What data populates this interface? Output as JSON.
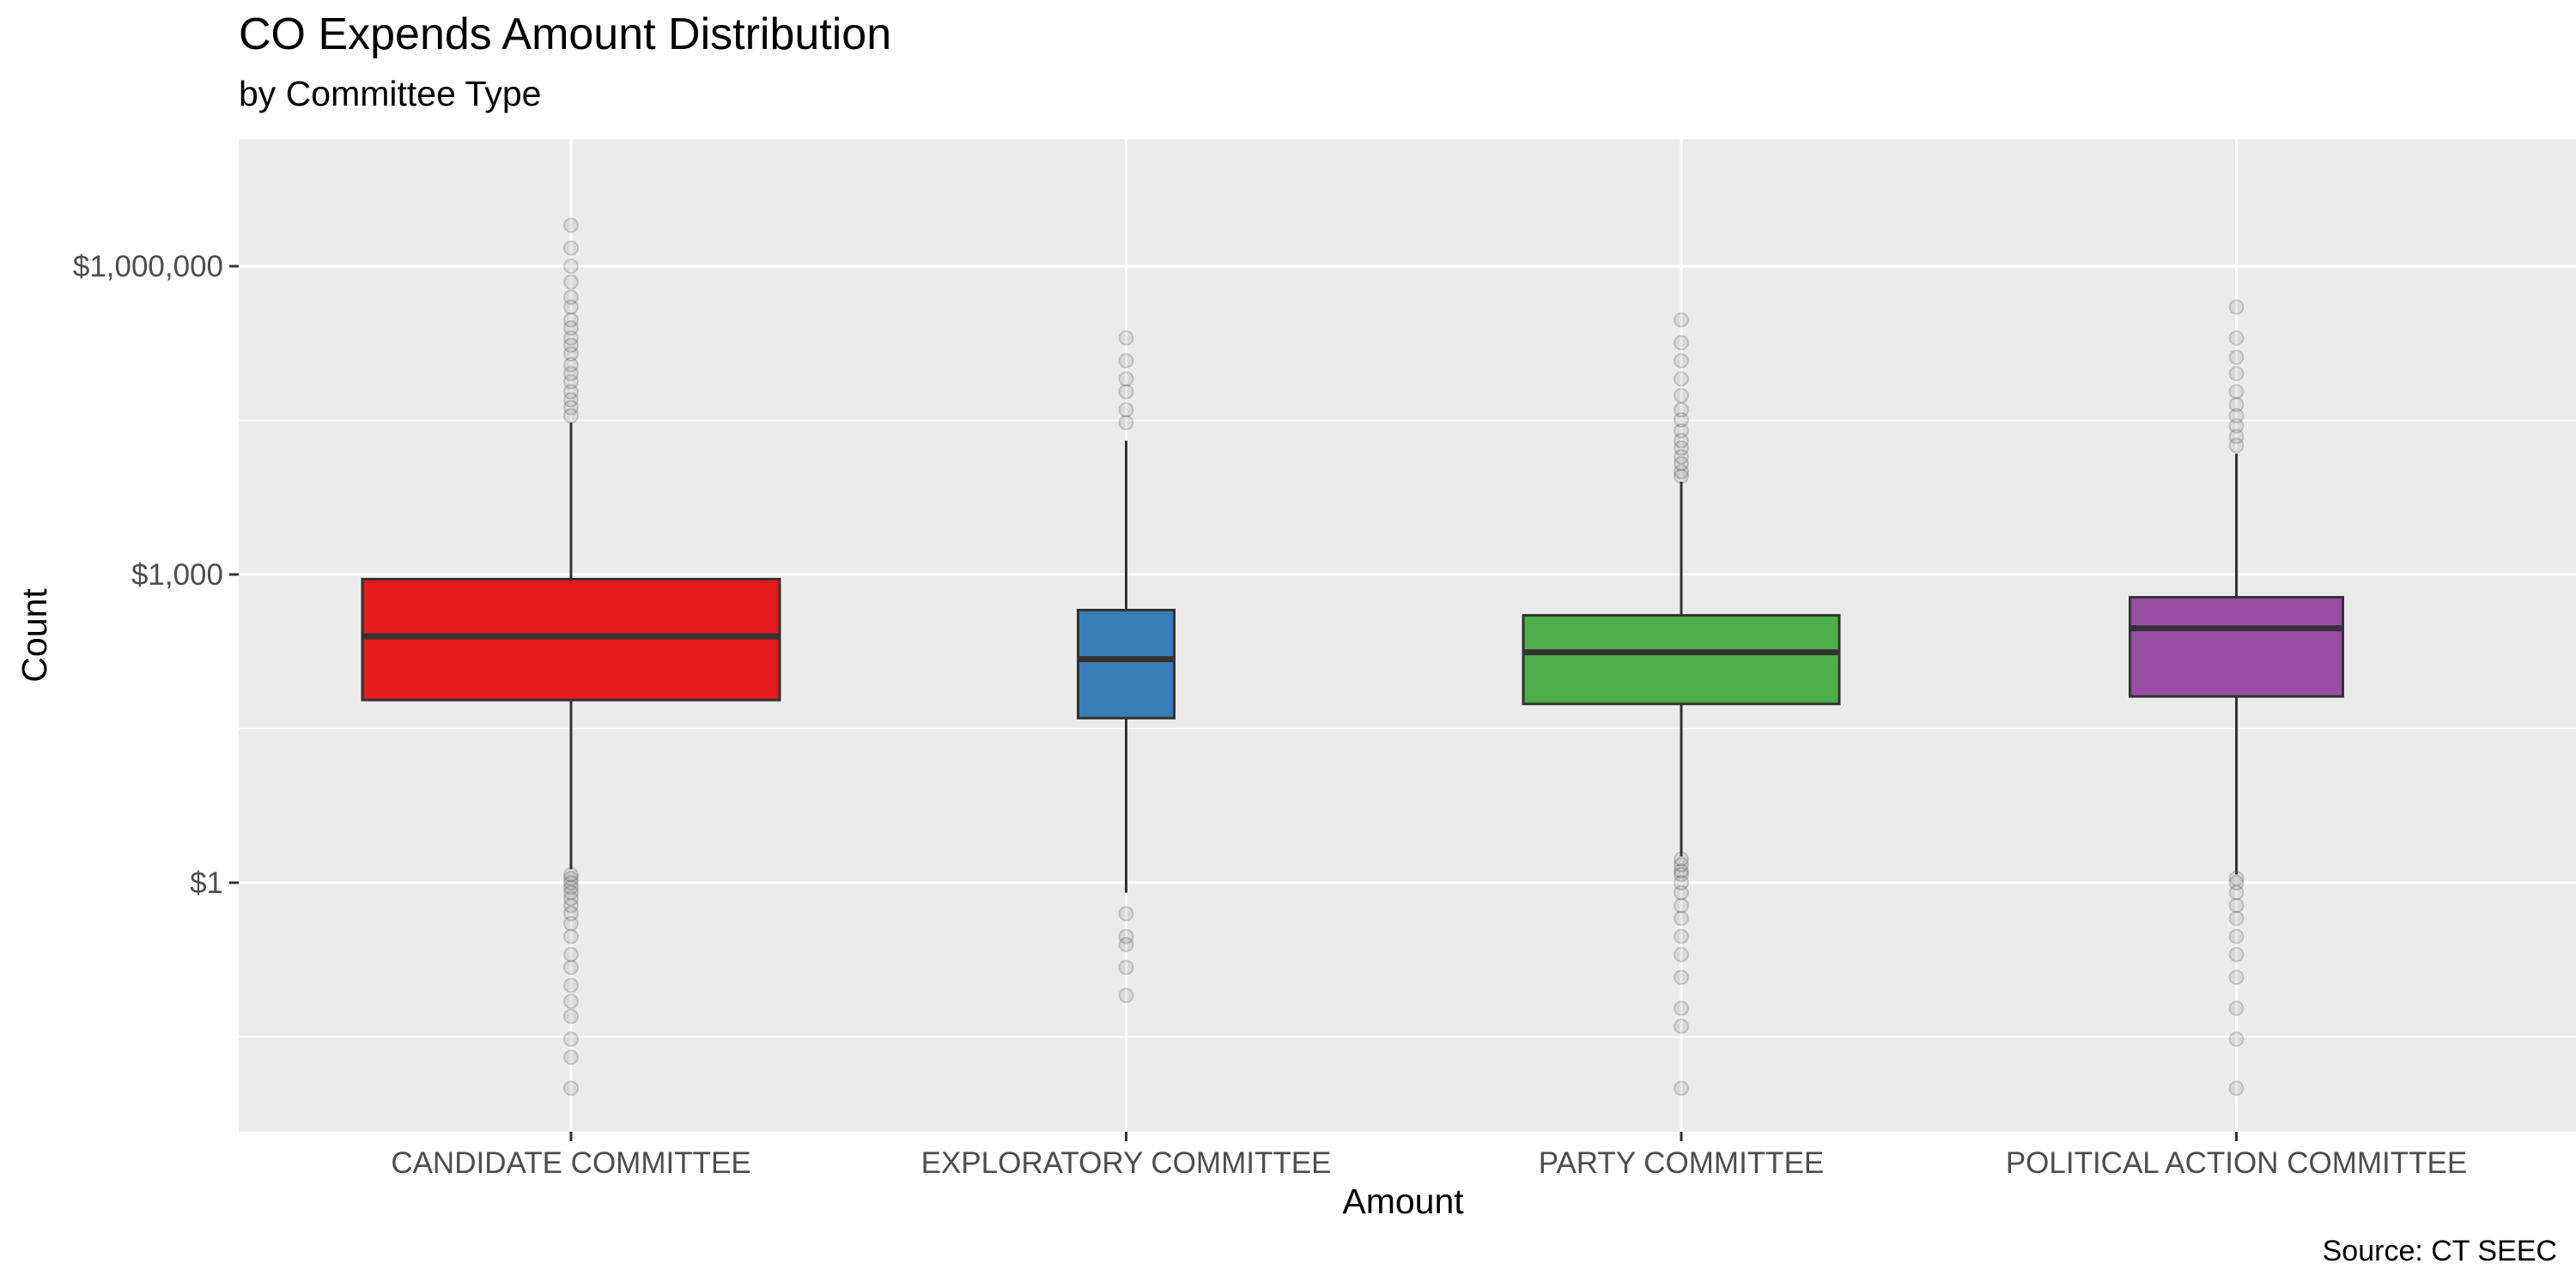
{
  "chart_data": {
    "type": "boxplot",
    "title": "CO Expends Amount Distribution",
    "subtitle": "by Committee Type",
    "caption": "Source: CT SEEC",
    "xlabel": "Amount",
    "ylabel": "Count",
    "y_scale": "log10",
    "ylim": [
      0.004,
      6000000
    ],
    "y_ticks": [
      {
        "value": 1,
        "label": "$1"
      },
      {
        "value": 1000,
        "label": "$1,000"
      },
      {
        "value": 1000000,
        "label": "$1,000,000"
      }
    ],
    "y_minor_gridlines": [
      0.03162,
      31.62,
      31623
    ],
    "grid": true,
    "legend": "none",
    "categories": [
      "CANDIDATE COMMITTEE",
      "EXPLORATORY COMMITTEE",
      "PARTY COMMITTEE",
      "POLITICAL ACTION COMMITTEE"
    ],
    "boxes": [
      {
        "category": "CANDIDATE COMMITTEE",
        "color": "#E41A1C",
        "q1": 60,
        "median": 250,
        "q3": 900,
        "whisker_low": 1.35,
        "whisker_high": 30000,
        "outliers": [
          1.2,
          1.1,
          1.0,
          0.9,
          0.8,
          0.7,
          0.6,
          0.5,
          0.4,
          0.3,
          0.2,
          0.15,
          0.1,
          0.07,
          0.05,
          0.03,
          0.02,
          0.01,
          35000,
          42000,
          50000,
          60000,
          75000,
          90000,
          110000,
          140000,
          170000,
          200000,
          250000,
          300000,
          400000,
          500000,
          700000,
          1000000,
          1500000,
          2500000
        ]
      },
      {
        "category": "EXPLORATORY COMMITTEE",
        "color": "#377EB8",
        "q1": 40,
        "median": 150,
        "q3": 450,
        "whisker_low": 0.8,
        "whisker_high": 20000,
        "outliers": [
          0.5,
          0.3,
          0.25,
          0.15,
          0.08,
          30000,
          40000,
          60000,
          80000,
          120000,
          200000
        ]
      },
      {
        "category": "PARTY COMMITTEE",
        "color": "#4DAF4A",
        "q1": 55,
        "median": 175,
        "q3": 400,
        "whisker_low": 1.8,
        "whisker_high": 8000,
        "outliers": [
          1.7,
          1.5,
          1.3,
          1.2,
          1.0,
          0.8,
          0.6,
          0.45,
          0.3,
          0.2,
          0.12,
          0.06,
          0.04,
          0.01,
          9000,
          10000,
          12000,
          14000,
          17000,
          20000,
          25000,
          32000,
          40000,
          55000,
          80000,
          120000,
          180000,
          300000
        ]
      },
      {
        "category": "POLITICAL ACTION COMMITTEE",
        "color": "#984EA3",
        "q1": 65,
        "median": 300,
        "q3": 600,
        "whisker_low": 1.2,
        "whisker_high": 15000,
        "outliers": [
          1.1,
          1.0,
          0.8,
          0.6,
          0.45,
          0.3,
          0.2,
          0.12,
          0.06,
          0.03,
          0.01,
          18000,
          22000,
          28000,
          35000,
          45000,
          60000,
          90000,
          130000,
          200000,
          400000
        ]
      }
    ]
  }
}
